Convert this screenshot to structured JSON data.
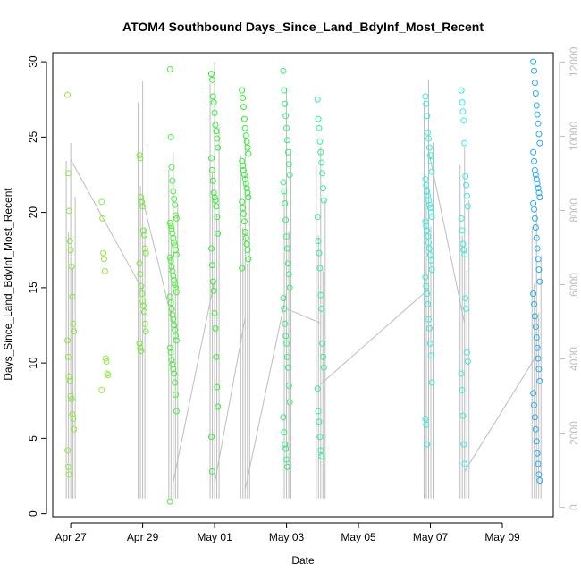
{
  "chart_data": {
    "type": "scatter",
    "title": "ATOM4 Southbound Days_Since_Land_BdyInf_Most_Recent",
    "xlabel": "Date",
    "ylabel": "Days_Since_Land_BdyInf_Most_Recent",
    "x_ticks": [
      "Apr 27",
      "Apr 29",
      "May 01",
      "May 03",
      "May 05",
      "May 07",
      "May 09"
    ],
    "x_tick_dates": [
      "2016-04-27",
      "2016-04-29",
      "2016-05-01",
      "2016-05-03",
      "2016-05-05",
      "2016-05-07",
      "2016-05-09"
    ],
    "xlim": [
      "2016-04-26 12:00",
      "2016-05-10 10:00"
    ],
    "ylim": [
      0,
      30
    ],
    "y_ticks": [
      0,
      5,
      10,
      15,
      20,
      25,
      30
    ],
    "y2_ticks": [
      0,
      2000,
      4000,
      6000,
      8000,
      10000,
      12000
    ],
    "y2lim": [
      0,
      12000
    ],
    "marker": "open-circle",
    "point_colors": {
      "early": "#90ee44",
      "mid": "#22ee44",
      "late": "#22eedd",
      "last": "#22aaff"
    },
    "line_color": "#bdbdbd",
    "clusters": [
      {
        "day": 0.0,
        "color": "#8bea3b",
        "values": [
          27.8,
          22.6,
          20.1,
          18.1,
          17.5,
          16.4,
          14.4,
          12.6,
          12.1,
          11.5,
          10.4,
          9.1,
          8.8,
          7.8,
          7.6,
          6.6,
          6.3,
          5.6,
          4.2,
          3.1,
          2.6
        ]
      },
      {
        "day": 0.95,
        "color": "#8bea3b",
        "values": [
          20.7,
          19.6,
          17.3,
          16.9,
          16.1,
          10.3,
          10.1,
          9.3,
          9.2,
          8.2
        ]
      },
      {
        "day": 2.0,
        "color": "#78ea3b",
        "values": [
          23.8,
          23.6,
          21.0,
          20.7,
          20.4,
          18.8,
          18.5,
          17.6,
          17.3,
          16.6,
          15.9,
          15.1,
          14.6,
          14.1,
          13.8,
          13.4,
          12.6,
          12.1,
          11.3,
          11.0,
          10.8
        ]
      },
      {
        "day": 2.85,
        "color": "#4cee3a",
        "values": [
          29.5,
          25.0,
          23.0,
          22.1,
          21.4,
          20.9,
          20.5,
          19.8,
          19.6,
          19.3,
          19.1,
          18.9,
          18.6,
          18.3,
          18.0,
          17.8,
          17.5,
          17.2,
          17.0,
          16.8,
          16.4,
          16.1,
          15.8,
          15.5,
          15.2,
          15.0,
          14.7,
          14.4,
          14.0,
          13.6,
          13.2,
          12.9,
          12.5,
          12.2,
          11.8,
          11.5,
          11.0,
          10.7,
          10.2,
          9.9,
          9.6,
          9.3,
          8.7,
          7.9,
          6.8,
          0.8
        ]
      },
      {
        "day": 4.0,
        "color": "#33ee33",
        "values": [
          29.2,
          28.8,
          27.7,
          27.3,
          26.6,
          25.8,
          25.4,
          24.9,
          24.3,
          23.6,
          22.8,
          22.1,
          21.3,
          21.0,
          20.8,
          20.4,
          19.7,
          18.6,
          17.6,
          16.5,
          15.4,
          14.8,
          13.3,
          12.3,
          10.4,
          8.4,
          7.1,
          5.1,
          2.8
        ]
      },
      {
        "day": 4.85,
        "color": "#33ee33",
        "values": [
          28.1,
          27.6,
          27.0,
          26.2,
          25.6,
          25.1,
          24.7,
          24.3,
          23.9,
          23.4,
          23.1,
          22.8,
          22.5,
          22.2,
          21.9,
          21.6,
          21.3,
          21.0,
          20.7,
          20.3,
          19.9,
          19.4,
          18.7,
          18.3,
          17.9,
          17.5,
          16.9,
          16.3
        ]
      },
      {
        "day": 6.0,
        "color": "#33ee77",
        "values": [
          29.4,
          28.1,
          27.2,
          26.4,
          25.6,
          24.8,
          24.0,
          23.2,
          22.5,
          22.0,
          21.4,
          20.6,
          19.5,
          18.4,
          17.6,
          16.6,
          15.9,
          15.0,
          14.3,
          13.6,
          12.6,
          11.8,
          11.3,
          10.4,
          9.7,
          8.5,
          7.4,
          6.4,
          5.4,
          4.6,
          4.3,
          3.6,
          3.1
        ]
      },
      {
        "day": 6.95,
        "color": "#33ee99",
        "values": [
          27.5,
          26.2,
          25.6,
          24.7,
          24.0,
          23.3,
          22.6,
          21.6,
          20.8,
          19.7,
          18.1,
          17.3,
          16.3,
          14.5,
          13.6,
          11.3,
          10.4,
          9.7,
          8.3,
          6.8,
          6.1,
          5.1,
          4.2,
          3.8
        ]
      },
      {
        "day": 9.95,
        "color": "#33eedd",
        "values": [
          27.7,
          27.2,
          26.4,
          25.3,
          24.9,
          24.3,
          23.8,
          23.4,
          22.7,
          22.2,
          21.8,
          21.4,
          21.1,
          20.8,
          20.5,
          20.3,
          20.0,
          19.7,
          19.4,
          19.1,
          18.8,
          18.4,
          18.0,
          17.6,
          17.2,
          16.8,
          16.2,
          15.7,
          15.1,
          14.6,
          13.9,
          12.9,
          12.3,
          11.3,
          10.5,
          8.7,
          6.3,
          5.9,
          4.6
        ]
      },
      {
        "day": 10.95,
        "color": "#33eedd",
        "values": [
          28.1,
          27.3,
          26.7,
          26.1,
          24.6,
          22.4,
          21.8,
          21.1,
          20.4,
          19.6,
          18.8,
          17.9,
          17.5,
          17.2,
          14.3,
          13.6,
          10.7,
          10.1,
          9.3,
          8.2,
          6.5,
          4.6,
          3.3
        ]
      },
      {
        "day": 12.95,
        "color": "#22aaff",
        "values": [
          30.0,
          29.4,
          28.6,
          27.9,
          27.1,
          26.5,
          25.9,
          25.2,
          24.6,
          24.0,
          23.4,
          22.8,
          22.5,
          22.2,
          21.9,
          21.6,
          21.3,
          21.0,
          20.6,
          20.2,
          19.6,
          19.0,
          18.3,
          17.6,
          16.9,
          16.2,
          15.4,
          14.6,
          13.9,
          13.1,
          12.4,
          11.7,
          11.0,
          10.3,
          9.6,
          8.8,
          8.0,
          7.2,
          6.4,
          5.6,
          4.8,
          4.0,
          3.3,
          2.6,
          2.2
        ]
      }
    ],
    "secondary_series": [
      {
        "day": 0.0,
        "values": [
          1.0,
          24.6,
          23.5
        ]
      },
      {
        "day": 2.0,
        "values": [
          1.0,
          28.7,
          20.9
        ]
      },
      {
        "day": 2.85,
        "values": [
          1.0,
          24.0,
          2.1
        ]
      },
      {
        "day": 4.0,
        "values": [
          1.0,
          30.0,
          2.0
        ]
      },
      {
        "day": 4.85,
        "values": [
          1.0,
          25.0,
          1.6
        ]
      },
      {
        "day": 6.0,
        "values": [
          1.0,
          28.3,
          13.6
        ]
      },
      {
        "day": 6.95,
        "values": [
          1.0,
          24.3,
          8.6
        ]
      },
      {
        "day": 9.95,
        "values": [
          1.0,
          28.8,
          24.1
        ]
      },
      {
        "day": 10.95,
        "values": [
          1.0,
          24.3,
          2.8
        ]
      },
      {
        "day": 12.95,
        "values": [
          1.0,
          20.0,
          9.7
        ]
      }
    ]
  }
}
